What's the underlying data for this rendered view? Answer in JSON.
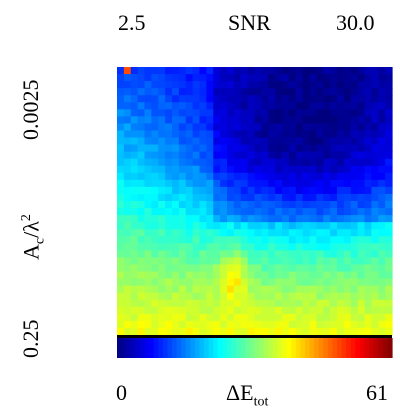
{
  "chart_data": {
    "type": "heatmap",
    "x_axis": {
      "min_label": "2.5",
      "max_label": "30.0",
      "label": "SNR"
    },
    "y_axis": {
      "top_label": "0.0025",
      "bottom_label": "0.25",
      "label_main": "A",
      "label_sub": "c",
      "label_rest": "/λ",
      "label_sup": "2"
    },
    "colorbar": {
      "min_label": "0",
      "max_label": "61",
      "label_main": "ΔE",
      "label_sub": "tot",
      "min": 0,
      "max": 61
    },
    "grid": false,
    "legend": "bottom colorbar",
    "colormap": [
      "#00007f",
      "#0000ff",
      "#007fff",
      "#00ffff",
      "#7fff7f",
      "#ffff00",
      "#ff7f00",
      "#ff0000",
      "#7f0000"
    ]
  }
}
